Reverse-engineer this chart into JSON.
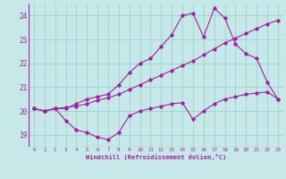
{
  "background_color": "#c6e8e8",
  "grid_color": "#9fcfcf",
  "line_color": "#a020a0",
  "xlim": [
    -0.5,
    23.5
  ],
  "ylim": [
    18.5,
    24.5
  ],
  "yticks": [
    19,
    20,
    21,
    22,
    23,
    24
  ],
  "xticks": [
    0,
    1,
    2,
    3,
    4,
    5,
    6,
    7,
    8,
    9,
    10,
    11,
    12,
    13,
    14,
    15,
    16,
    17,
    18,
    19,
    20,
    21,
    22,
    23
  ],
  "xlabel": "Windchill (Refroidissement éolien,°C)",
  "series": [
    [
      20.1,
      20.0,
      20.1,
      20.1,
      20.3,
      20.5,
      20.6,
      20.7,
      21.1,
      21.6,
      22.0,
      22.2,
      22.7,
      23.2,
      24.0,
      24.1,
      23.1,
      24.3,
      23.9,
      22.8,
      22.4,
      22.2,
      21.2,
      20.5
    ],
    [
      20.1,
      20.0,
      20.1,
      20.15,
      20.2,
      20.3,
      20.45,
      20.55,
      20.7,
      20.9,
      21.1,
      21.3,
      21.5,
      21.7,
      21.9,
      22.1,
      22.35,
      22.6,
      22.85,
      23.05,
      23.25,
      23.45,
      23.65,
      23.8
    ],
    [
      20.1,
      20.0,
      20.1,
      19.6,
      19.2,
      19.1,
      18.9,
      18.8,
      19.1,
      19.8,
      20.0,
      20.1,
      20.2,
      20.3,
      20.35,
      19.65,
      20.0,
      20.3,
      20.5,
      20.6,
      20.7,
      20.75,
      20.8,
      20.5
    ]
  ]
}
